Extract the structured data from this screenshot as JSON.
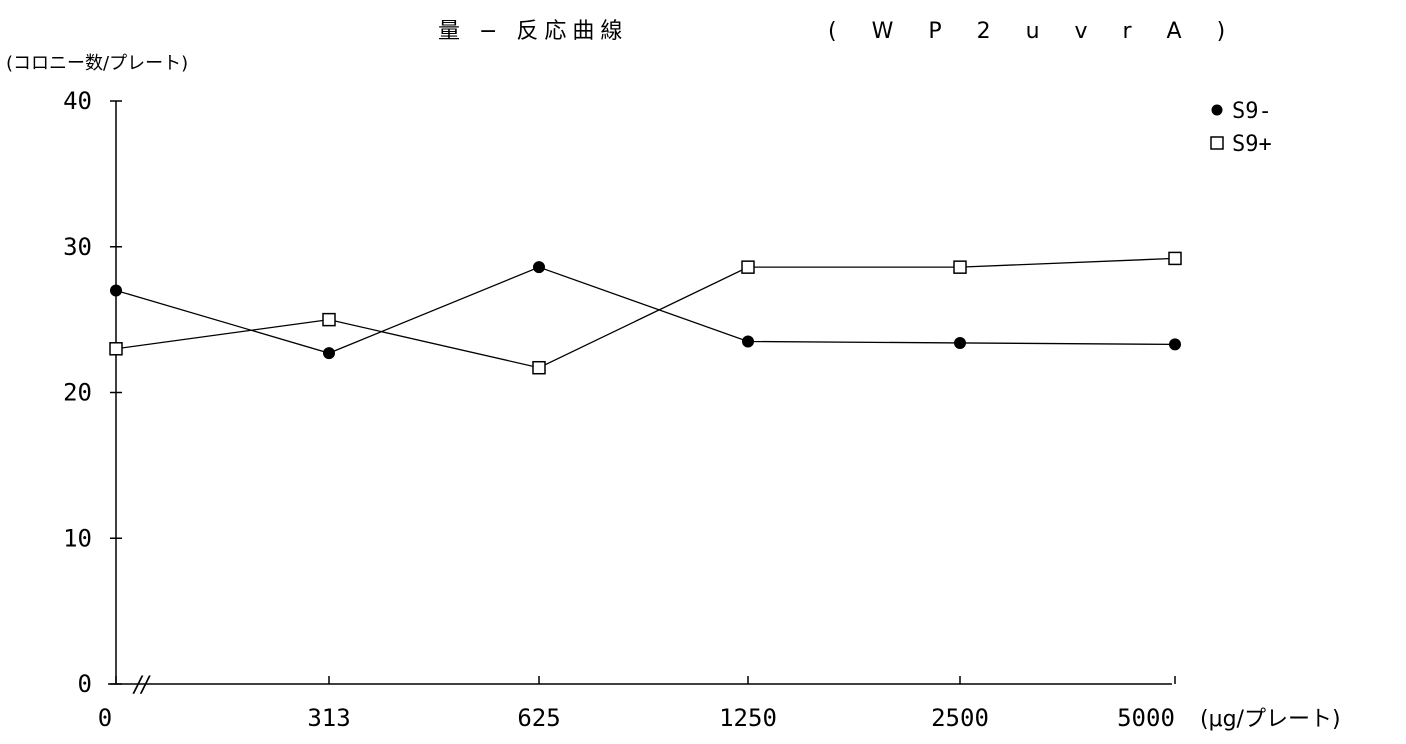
{
  "chart_data": {
    "type": "line",
    "title": "量 − 反応曲線",
    "subtitle": "( W P 2   u v r A )",
    "ylabel": "(コロニー数/プレート)",
    "xunit": "(μg/プレート)",
    "categories": [
      "0",
      "313",
      "625",
      "1250",
      "2500",
      "5000"
    ],
    "ylim": [
      0,
      40
    ],
    "yticks": [
      0,
      10,
      20,
      30,
      40
    ],
    "grid": false,
    "axis_break": "//",
    "legend_position": "top-right",
    "series": [
      {
        "name": "S9-",
        "marker": "filled-circle",
        "values": [
          27.0,
          22.7,
          28.6,
          23.5,
          23.4,
          23.3
        ]
      },
      {
        "name": "S9+",
        "marker": "open-square",
        "values": [
          23.0,
          25.0,
          21.7,
          28.6,
          28.6,
          29.2
        ]
      }
    ],
    "colors": {
      "line": "#000000",
      "background": "#ffffff"
    }
  }
}
